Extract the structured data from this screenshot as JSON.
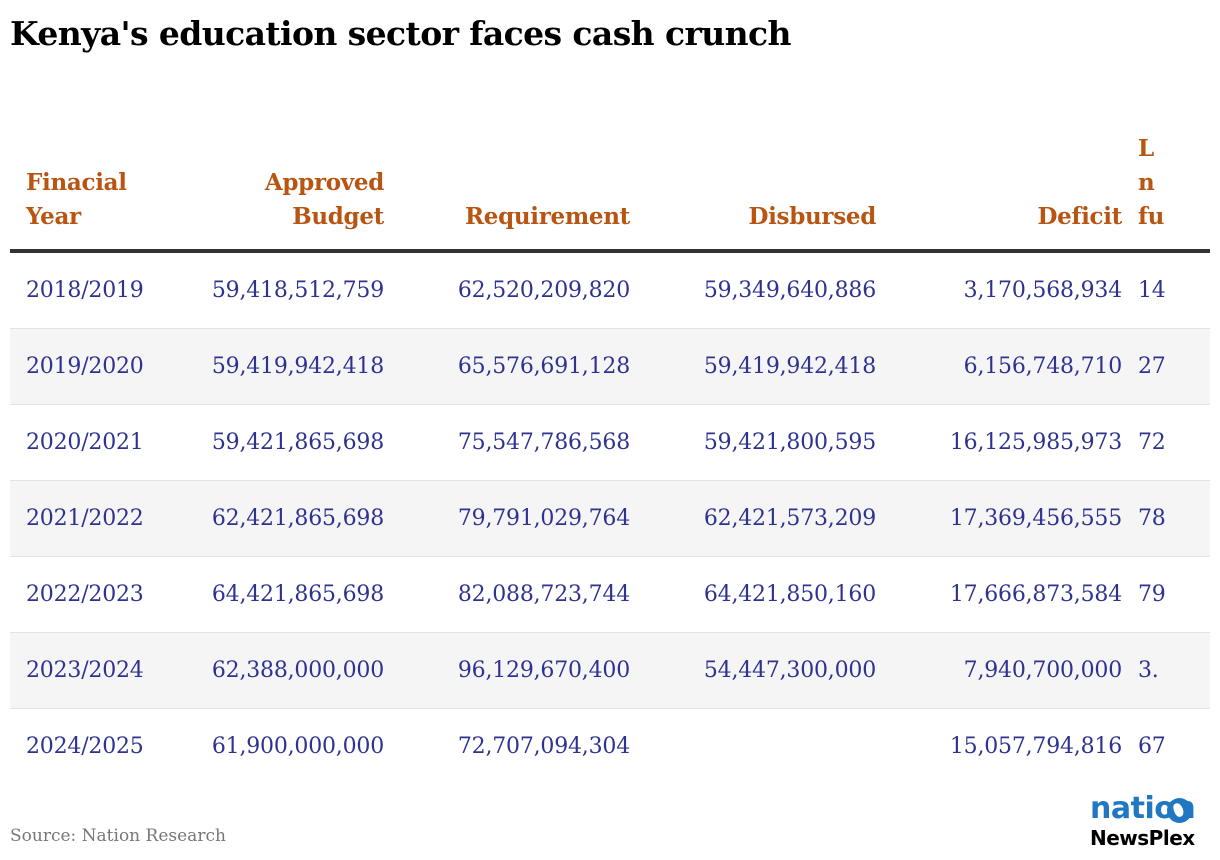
{
  "chart_data": {
    "type": "table",
    "title": "Kenya's education sector faces cash crunch",
    "columns": [
      "Finacial Year",
      "Approved Budget",
      "Requirement",
      "Disbursed",
      "Deficit",
      "L n fu"
    ],
    "rows": [
      [
        "2018/2019",
        "59,418,512,759",
        "62,520,209,820",
        "59,349,640,886",
        "3,170,568,934",
        "14"
      ],
      [
        "2019/2020",
        "59,419,942,418",
        "65,576,691,128",
        "59,419,942,418",
        "6,156,748,710",
        "27"
      ],
      [
        "2020/2021",
        "59,421,865,698",
        "75,547,786,568",
        "59,421,800,595",
        "16,125,985,973",
        "72"
      ],
      [
        "2021/2022",
        "62,421,865,698",
        "79,791,029,764",
        "62,421,573,209",
        "17,369,456,555",
        "78"
      ],
      [
        "2022/2023",
        "64,421,865,698",
        "82,088,723,744",
        "64,421,850,160",
        "17,666,873,584",
        "79"
      ],
      [
        "2023/2024",
        "62,388,000,000",
        "96,129,670,400",
        "54,447,300,000",
        "7,940,700,000",
        "3."
      ],
      [
        "2024/2025",
        "61,900,000,000",
        "72,707,094,304",
        "",
        "15,057,794,816",
        "67"
      ]
    ],
    "source": "Source: Nation Research"
  },
  "logo": {
    "top_text": "nation",
    "bottom_text": "NewsPlex",
    "brand_color": "#1f78c1"
  },
  "colors": {
    "header_text": "#b85512",
    "cell_text": "#2e3390",
    "stripe": "#f5f5f5"
  }
}
